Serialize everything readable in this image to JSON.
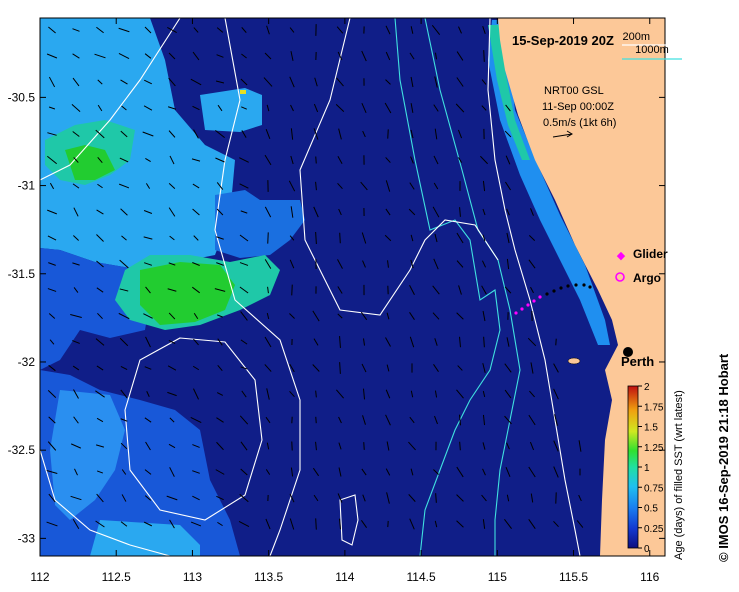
{
  "title": "15-Sep-2019 20Z",
  "isobaths": [
    {
      "label": "200m",
      "color": "#ffffff"
    },
    {
      "label": "1000m",
      "color": "#40e0e0"
    }
  ],
  "current_info": {
    "line1": "NRT00 GSL",
    "line2": "11-Sep 00:00Z",
    "line3": "0.5m/s (1kt 6h)"
  },
  "legend": {
    "glider_label": "Glider",
    "argo_label": "Argo",
    "glider_color": "#ff00ff",
    "argo_color": "#ff00ff"
  },
  "city": {
    "name": "Perth",
    "lon": 115.86,
    "lat": -31.95
  },
  "colorbar": {
    "label": "Age (days) of filled SST (wrt latest)",
    "ticks": [
      "0",
      "0.25",
      "0.5",
      "0.75",
      "1",
      "1.25",
      "1.5",
      "1.75",
      "2"
    ],
    "min": 0,
    "max": 2
  },
  "credit": "© IMOS 16-Sep-2019 21:18 Hobart",
  "axes": {
    "x_ticks": [
      "112",
      "112.5",
      "113",
      "113.5",
      "114",
      "114.5",
      "115",
      "115.5",
      "116"
    ],
    "y_ticks": [
      "-30.5",
      "-31",
      "-31.5",
      "-32",
      "-32.5",
      "-33"
    ],
    "xlim": [
      112,
      116.1
    ],
    "ylim": [
      -33.1,
      -30.05
    ]
  },
  "colors": {
    "land": "#fcc898",
    "ocean_fresh": "#101e88",
    "age_low": "#1858d8",
    "age_mid": "#2aa8f0",
    "age_teal": "#1fc8a8",
    "age_green": "#22cc30",
    "coast_blue": "#1f8ff0"
  }
}
